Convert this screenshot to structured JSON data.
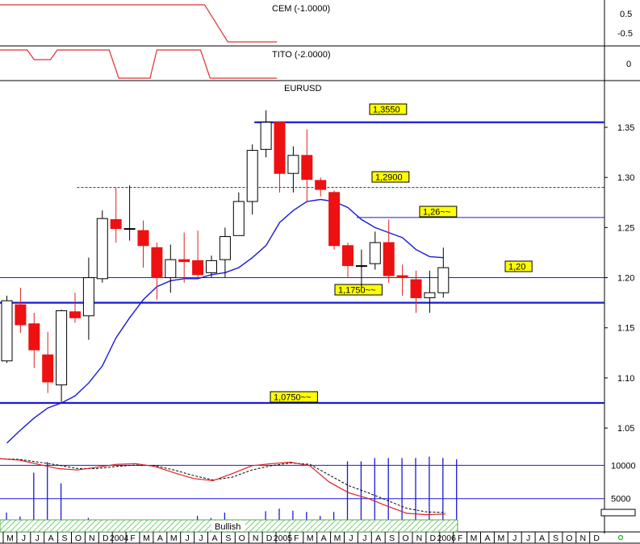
{
  "chart_data": {
    "type": "candlestick",
    "panels": {
      "cem": {
        "label": "CEM (-1.0000)",
        "ticks": [
          "0.5",
          "-0.5"
        ],
        "line": [
          [
            -0.5,
            1
          ],
          [
            14.5,
            1
          ],
          [
            16.2,
            -0.6
          ],
          [
            19.8,
            -0.6
          ]
        ]
      },
      "tito": {
        "label": "TITO (-2.0000)",
        "ticks": [
          "0"
        ],
        "line": [
          [
            -0.5,
            1
          ],
          [
            1.5,
            1
          ],
          [
            2,
            0.45
          ],
          [
            3.2,
            0.45
          ],
          [
            3.7,
            1
          ],
          [
            7.5,
            1
          ],
          [
            8.2,
            -0.6
          ],
          [
            10.5,
            -0.6
          ],
          [
            11,
            1
          ],
          [
            14.2,
            1
          ],
          [
            14.9,
            -0.6
          ],
          [
            19.8,
            -0.6
          ]
        ]
      },
      "price": {
        "title": "EURUSD",
        "ylim": [
          1.03,
          1.395
        ],
        "yticks": [
          "1.35",
          "1.30",
          "1.25",
          "1.20",
          "1.15",
          "1.10",
          "1.05"
        ],
        "yticks_values": [
          1.35,
          1.3,
          1.25,
          1.2,
          1.15,
          1.1,
          1.05
        ],
        "candles": [
          {
            "o": 1.117,
            "h": 1.182,
            "l": 1.115,
            "c": 1.177
          },
          {
            "o": 1.173,
            "h": 1.19,
            "l": 1.145,
            "c": 1.153
          },
          {
            "o": 1.154,
            "h": 1.165,
            "l": 1.11,
            "c": 1.128
          },
          {
            "o": 1.123,
            "h": 1.146,
            "l": 1.085,
            "c": 1.096
          },
          {
            "o": 1.093,
            "h": 1.168,
            "l": 1.076,
            "c": 1.167
          },
          {
            "o": 1.166,
            "h": 1.185,
            "l": 1.155,
            "c": 1.16
          },
          {
            "o": 1.162,
            "h": 1.22,
            "l": 1.138,
            "c": 1.2
          },
          {
            "o": 1.199,
            "h": 1.267,
            "l": 1.195,
            "c": 1.259
          },
          {
            "o": 1.258,
            "h": 1.29,
            "l": 1.235,
            "c": 1.249
          },
          {
            "o": 1.249,
            "h": 1.292,
            "l": 1.237,
            "c": 1.249
          },
          {
            "o": 1.247,
            "h": 1.257,
            "l": 1.21,
            "c": 1.232
          },
          {
            "o": 1.23,
            "h": 1.235,
            "l": 1.178,
            "c": 1.2
          },
          {
            "o": 1.2,
            "h": 1.233,
            "l": 1.185,
            "c": 1.218
          },
          {
            "o": 1.218,
            "h": 1.245,
            "l": 1.195,
            "c": 1.216
          },
          {
            "o": 1.217,
            "h": 1.247,
            "l": 1.2,
            "c": 1.203
          },
          {
            "o": 1.205,
            "h": 1.222,
            "l": 1.2,
            "c": 1.217
          },
          {
            "o": 1.218,
            "h": 1.25,
            "l": 1.2,
            "c": 1.241
          },
          {
            "o": 1.242,
            "h": 1.285,
            "l": 1.242,
            "c": 1.276
          },
          {
            "o": 1.276,
            "h": 1.333,
            "l": 1.263,
            "c": 1.327
          },
          {
            "o": 1.328,
            "h": 1.367,
            "l": 1.32,
            "c": 1.355
          },
          {
            "o": 1.355,
            "h": 1.355,
            "l": 1.285,
            "c": 1.304
          },
          {
            "o": 1.304,
            "h": 1.331,
            "l": 1.285,
            "c": 1.322
          },
          {
            "o": 1.322,
            "h": 1.348,
            "l": 1.275,
            "c": 1.298
          },
          {
            "o": 1.297,
            "h": 1.3,
            "l": 1.281,
            "c": 1.288
          },
          {
            "o": 1.285,
            "h": 1.287,
            "l": 1.228,
            "c": 1.232
          },
          {
            "o": 1.232,
            "h": 1.235,
            "l": 1.2,
            "c": 1.212
          },
          {
            "o": 1.212,
            "h": 1.228,
            "l": 1.19,
            "c": 1.212
          },
          {
            "o": 1.214,
            "h": 1.246,
            "l": 1.208,
            "c": 1.235
          },
          {
            "o": 1.235,
            "h": 1.258,
            "l": 1.195,
            "c": 1.202
          },
          {
            "o": 1.202,
            "h": 1.213,
            "l": 1.182,
            "c": 1.2
          },
          {
            "o": 1.198,
            "h": 1.207,
            "l": 1.165,
            "c": 1.18
          },
          {
            "o": 1.18,
            "h": 1.207,
            "l": 1.165,
            "c": 1.185
          },
          {
            "o": 1.185,
            "h": 1.23,
            "l": 1.18,
            "c": 1.21
          }
        ],
        "ma": [
          1.035,
          1.048,
          1.06,
          1.07,
          1.075,
          1.082,
          1.095,
          1.112,
          1.14,
          1.16,
          1.178,
          1.191,
          1.197,
          1.199,
          1.199,
          1.203,
          1.205,
          1.21,
          1.22,
          1.232,
          1.255,
          1.267,
          1.276,
          1.278,
          1.276,
          1.27,
          1.258,
          1.25,
          1.245,
          1.24,
          1.228,
          1.221,
          1.22
        ],
        "levels": [
          {
            "value": 1.355,
            "label": "1,3550",
            "style": "thick",
            "from": 18.5
          },
          {
            "value": 1.29,
            "label": "1,2900",
            "style": "dashed",
            "from": 5.5
          },
          {
            "value": 1.26,
            "label": "1,26~~",
            "style": "thin",
            "from": 26
          },
          {
            "value": 1.2,
            "label": "1,20",
            "style": "thin",
            "from": -0.5
          },
          {
            "value": 1.175,
            "label": "1,1750~~",
            "style": "thick",
            "from": -0.5
          },
          {
            "value": 1.075,
            "label": "1,0750~~",
            "style": "thick",
            "from": -0.5
          }
        ]
      },
      "volume": {
        "label": "Bullish",
        "ticks": [
          "10000",
          "5000"
        ],
        "ticks_values": [
          10000,
          5000
        ],
        "max": 11500,
        "bars": [
          2900,
          2300,
          8900,
          10500,
          7300,
          300,
          2100,
          500,
          300,
          600,
          1200,
          1100,
          900,
          200,
          2400,
          2100,
          2900,
          400,
          600,
          3100,
          3500,
          3200,
          3000,
          2400,
          3000,
          10600,
          10600,
          11100,
          11100,
          11100,
          11100,
          11300,
          11100,
          10900
        ],
        "osc_red": [
          0.76,
          0.74,
          0.68,
          0.62,
          0.6,
          0.64,
          0.68,
          0.69,
          0.65,
          0.56,
          0.48,
          0.45,
          0.55,
          0.66,
          0.69,
          0.71,
          0.66,
          0.43,
          0.28,
          0.2,
          0.09,
          -0.01,
          -0.03,
          -0.02
        ],
        "osc_black": [
          0.76,
          0.75,
          0.71,
          0.67,
          0.62,
          0.62,
          0.65,
          0.67,
          0.66,
          0.6,
          0.52,
          0.46,
          0.5,
          0.6,
          0.66,
          0.7,
          0.68,
          0.53,
          0.38,
          0.28,
          0.17,
          0.06,
          0.01,
          0.0
        ]
      }
    },
    "x_axis": {
      "labels": [
        "M",
        "J",
        "J",
        "A",
        "S",
        "O",
        "N",
        "D",
        "2004",
        "F",
        "M",
        "A",
        "M",
        "J",
        "J",
        "A",
        "S",
        "O",
        "N",
        "D",
        "2005",
        "F",
        "M",
        "A",
        "M",
        "J",
        "J",
        "A",
        "S",
        "O",
        "N",
        "D",
        "2006",
        "F",
        "M",
        "A",
        "M",
        "J",
        "J",
        "A",
        "S",
        "O",
        "N",
        "D"
      ]
    }
  }
}
